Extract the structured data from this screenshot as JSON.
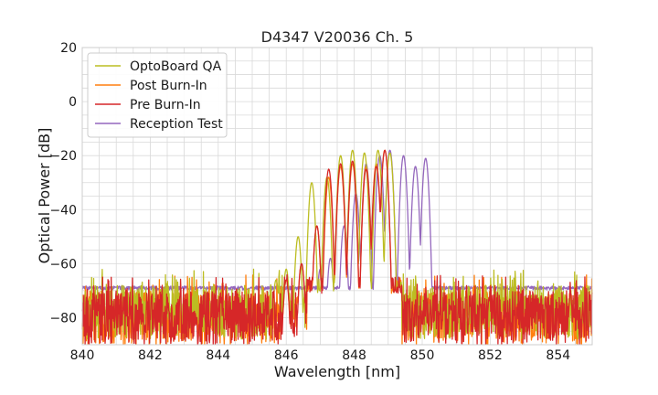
{
  "chart_data": {
    "type": "line",
    "title": "D4347 V20036 Ch. 5",
    "xlabel": "Wavelength [nm]",
    "ylabel": "Optical Power [dB]",
    "xlim": [
      840,
      855
    ],
    "ylim": [
      -90,
      20
    ],
    "xticks": [
      840,
      842,
      844,
      846,
      848,
      850,
      852,
      854
    ],
    "yticks": [
      20,
      0,
      -20,
      -40,
      -60,
      -80
    ],
    "ytick_labels": [
      "20",
      "0",
      "−20",
      "−40",
      "−60",
      "−80"
    ],
    "grid": true,
    "legend_position": "top-left",
    "series": [
      {
        "name": "OptoBoard QA",
        "color": "#bcbd22",
        "noise_range": [
          840,
          849.4
        ],
        "floor": -78,
        "noise_amp": 10,
        "peaks": [
          {
            "x": 845.7,
            "y": -66
          },
          {
            "x": 846.0,
            "y": -62
          },
          {
            "x": 846.35,
            "y": -50
          },
          {
            "x": 846.75,
            "y": -30
          },
          {
            "x": 847.2,
            "y": -28
          },
          {
            "x": 847.6,
            "y": -20
          },
          {
            "x": 847.95,
            "y": -18
          },
          {
            "x": 848.3,
            "y": -19
          },
          {
            "x": 848.7,
            "y": -18
          },
          {
            "x": 849.05,
            "y": -19
          }
        ]
      },
      {
        "name": "Post Burn-In",
        "color": "#ff7f0e",
        "noise_range": [
          840,
          849.4
        ],
        "floor": -80,
        "noise_amp": 10,
        "peaks": [
          {
            "x": 846.0,
            "y": -66
          },
          {
            "x": 846.45,
            "y": -60
          },
          {
            "x": 846.9,
            "y": -46
          },
          {
            "x": 847.25,
            "y": -28
          },
          {
            "x": 847.6,
            "y": -24
          },
          {
            "x": 847.95,
            "y": -23
          },
          {
            "x": 848.35,
            "y": -24
          },
          {
            "x": 848.65,
            "y": -23
          },
          {
            "x": 848.9,
            "y": -18
          }
        ]
      },
      {
        "name": "Pre Burn-In",
        "color": "#d62728",
        "noise_range": [
          840,
          849.4
        ],
        "floor": -80,
        "noise_amp": 10,
        "peaks": [
          {
            "x": 846.0,
            "y": -66
          },
          {
            "x": 846.45,
            "y": -60
          },
          {
            "x": 846.9,
            "y": -46
          },
          {
            "x": 847.25,
            "y": -25
          },
          {
            "x": 847.6,
            "y": -23
          },
          {
            "x": 847.95,
            "y": -22
          },
          {
            "x": 848.35,
            "y": -25
          },
          {
            "x": 848.65,
            "y": -24
          },
          {
            "x": 848.9,
            "y": -18
          }
        ]
      },
      {
        "name": "Reception Test",
        "color": "#9467bd",
        "floor": -69,
        "peaks": [
          {
            "x": 847.0,
            "y": -62
          },
          {
            "x": 847.3,
            "y": -58
          },
          {
            "x": 847.7,
            "y": -46
          },
          {
            "x": 848.05,
            "y": -34
          },
          {
            "x": 848.35,
            "y": -23
          },
          {
            "x": 848.75,
            "y": -20
          },
          {
            "x": 849.05,
            "y": -18
          },
          {
            "x": 849.45,
            "y": -20
          },
          {
            "x": 849.8,
            "y": -24
          },
          {
            "x": 850.1,
            "y": -21
          }
        ]
      }
    ]
  }
}
